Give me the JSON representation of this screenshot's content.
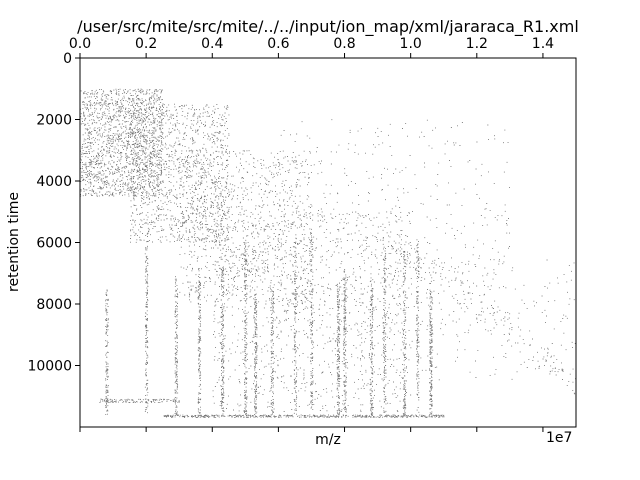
{
  "chart_data": {
    "type": "scatter",
    "title": "/user/src/mite/src/mite/../../input/ion_map/xml/jararaca_R1.xml",
    "xlabel": "m/z",
    "ylabel": "retention time",
    "x_offset_label": "1e7",
    "xlim": [
      0,
      1.5
    ],
    "ylim": [
      12000,
      0
    ],
    "y_inverted": true,
    "top_ticks": [
      "0.0",
      "0.2",
      "0.4",
      "0.6",
      "0.8",
      "1.0",
      "1.2",
      "1.4"
    ],
    "y_ticks": [
      "0",
      "2000",
      "4000",
      "6000",
      "8000",
      "10000"
    ],
    "grid": false,
    "point_color": "#000000",
    "point_count_shown": "several thousand small points",
    "density_regions": [
      {
        "x": [
          0.0,
          0.25
        ],
        "y": [
          1000,
          4500
        ],
        "weight": 0.22
      },
      {
        "x": [
          0.15,
          0.45
        ],
        "y": [
          1500,
          6000
        ],
        "weight": 0.16
      },
      {
        "x": [
          0.3,
          0.7
        ],
        "y": [
          3000,
          8000
        ],
        "weight": 0.12
      },
      {
        "x": [
          0.4,
          1.0
        ],
        "y": [
          5000,
          11500
        ],
        "weight": 0.14
      },
      {
        "x": [
          0.6,
          1.3
        ],
        "y": [
          2000,
          9000
        ],
        "weight": 0.06
      },
      {
        "x": [
          1.0,
          1.5
        ],
        "y": [
          6500,
          10500
        ],
        "weight": 0.02
      }
    ],
    "vertical_streaks_x": [
      0.08,
      0.2,
      0.29,
      0.36,
      0.43,
      0.5,
      0.53,
      0.58,
      0.65,
      0.7,
      0.78,
      0.8,
      0.88,
      0.92,
      0.98,
      1.02,
      1.06
    ],
    "bottom_band_y": 11650
  }
}
